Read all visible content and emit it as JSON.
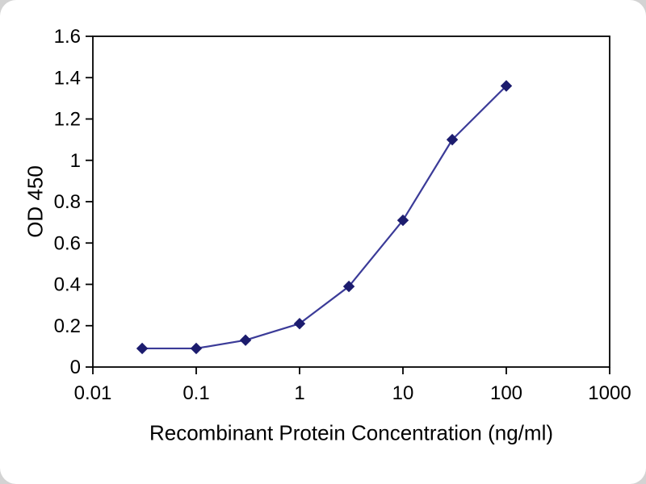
{
  "chart_data": {
    "type": "line",
    "title": "",
    "xlabel": "Recombinant Protein Concentration (ng/ml)",
    "ylabel": "OD 450",
    "x_scale": "log",
    "xlim": [
      0.01,
      1000
    ],
    "ylim": [
      0,
      1.6
    ],
    "x": [
      0.03,
      0.1,
      0.3,
      1,
      3,
      10,
      30,
      100
    ],
    "y": [
      0.09,
      0.09,
      0.13,
      0.21,
      0.39,
      0.71,
      1.1,
      1.36
    ],
    "x_ticks": [
      0.01,
      0.1,
      1,
      10,
      100,
      1000
    ],
    "x_tick_labels": [
      "0.01",
      "0.1",
      "1",
      "10",
      "100",
      "1000"
    ],
    "y_ticks": [
      0,
      0.2,
      0.4,
      0.6,
      0.8,
      1,
      1.2,
      1.4,
      1.6
    ],
    "y_tick_labels": [
      "0",
      "0.2",
      "0.4",
      "0.6",
      "0.8",
      "1",
      "1.2",
      "1.4",
      "1.6"
    ],
    "grid": false,
    "legend": false,
    "marker": "diamond",
    "line_color": "#3B3B98",
    "marker_color": "#1C1C6E",
    "axis_color": "#000000"
  }
}
